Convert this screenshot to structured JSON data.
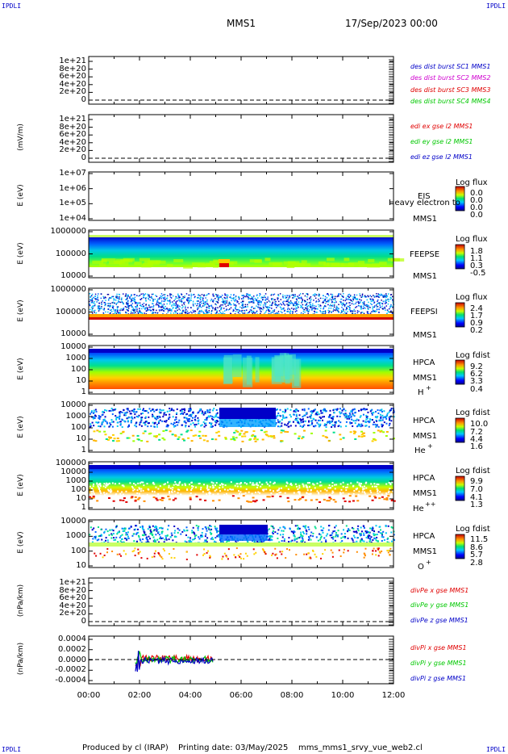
{
  "header": {
    "corner_tl": "IPDLI",
    "corner_tr": "IPDLI",
    "corner_bl": "IPDLI",
    "corner_br": "IPDLI",
    "title": "MMS1",
    "date": "17/Sep/2023 00:00"
  },
  "footer": {
    "produced": "Produced by cl (IRAP)",
    "printing": "Printing date: 03/May/2025",
    "script": "mms_mms1_srvy_vue_web2.cl"
  },
  "x_axis": {
    "labels": [
      "00:00",
      "02:00",
      "04:00",
      "06:00",
      "08:00",
      "10:00",
      "12:00"
    ]
  },
  "colors": {
    "blue": "#0000c8",
    "magenta": "#d000d0",
    "red": "#e00000",
    "green": "#00c800"
  },
  "panels": {
    "p1": {
      "ylabel": "",
      "ticks": [
        "1e+21",
        "8e+20",
        "6e+20",
        "4e+20",
        "2e+20",
        "0"
      ],
      "legend": [
        "des dist burst SC1 MMS1",
        "des dist burst SC2 MMS2",
        "des dist burst SC3 MMS3",
        "des dist burst SC4 MMS4"
      ]
    },
    "p2": {
      "ylabel": "(mV/m)",
      "ticks": [
        "1e+21",
        "8e+20",
        "6e+20",
        "4e+20",
        "2e+20",
        "0"
      ],
      "legend": [
        "edi ex gse l2 MMS1",
        "edi ey gse l2 MMS1",
        "edi ez gse l2 MMS1"
      ]
    },
    "p3": {
      "ylabel": "E (eV)",
      "ticks": [
        "1e+07",
        "1e+06",
        "1e+05",
        "1e+04"
      ],
      "side": [
        "EIS",
        "MMS1"
      ],
      "overlay": "Heavy electron to",
      "cb_title": "Log flux",
      "cb_values": [
        "0.0",
        "0.0",
        "0.0",
        "0.0"
      ]
    },
    "p4": {
      "ylabel": "E (eV)",
      "ticks": [
        "1000000",
        "100000",
        "10000"
      ],
      "side": [
        "FEEPSE",
        "MMS1"
      ],
      "cb_title": "Log flux",
      "cb_values": [
        "1.8",
        "1.1",
        "0.3",
        "-0.5"
      ]
    },
    "p5": {
      "ylabel": "E (eV)",
      "ticks": [
        "1000000",
        "100000",
        "10000"
      ],
      "side": [
        "FEEPSI",
        "MMS1"
      ],
      "cb_title": "Log flux",
      "cb_values": [
        "2.4",
        "1.7",
        "0.9",
        "0.2"
      ]
    },
    "p6": {
      "ylabel": "E (eV)",
      "ticks": [
        "10000",
        "1000",
        "100",
        "10",
        "1"
      ],
      "side": [
        "HPCA",
        "MMS1",
        "H",
        "+"
      ],
      "cb_title": "Log fdist",
      "cb_values": [
        "9.2",
        "6.2",
        "3.3",
        "0.4"
      ]
    },
    "p7": {
      "ylabel": "E (eV)",
      "ticks": [
        "10000",
        "1000",
        "100",
        "10",
        "1"
      ],
      "side": [
        "HPCA",
        "MMS1",
        "He",
        "+"
      ],
      "cb_title": "Log fdist",
      "cb_values": [
        "10.0",
        "7.2",
        "4.4",
        "1.6"
      ]
    },
    "p8": {
      "ylabel": "E (eV)",
      "ticks": [
        "100000",
        "10000",
        "1000",
        "100",
        "10",
        "1"
      ],
      "side": [
        "HPCA",
        "MMS1",
        "He",
        "++"
      ],
      "cb_title": "Log fdist",
      "cb_values": [
        "9.9",
        "7.0",
        "4.1",
        "1.3"
      ]
    },
    "p9": {
      "ylabel": "E (eV)",
      "ticks": [
        "10000",
        "1000",
        "100",
        "10"
      ],
      "side": [
        "HPCA",
        "MMS1",
        "O",
        "+"
      ],
      "cb_title": "Log fdist",
      "cb_values": [
        "11.5",
        "8.6",
        "5.7",
        "2.8"
      ]
    },
    "p10": {
      "ylabel": "(nPa/km)",
      "ticks": [
        "1e+21",
        "8e+20",
        "6e+20",
        "4e+20",
        "2e+20",
        "0"
      ],
      "legend": [
        "divPe x gse MMS1",
        "divPe y gse MMS1",
        "divPe z gse MMS1"
      ]
    },
    "p11": {
      "ylabel": "(nPa/km)",
      "ticks": [
        "0.0004",
        "0.0002",
        "0.0000",
        "-0.0002",
        "-0.0004"
      ],
      "legend": [
        "divPi x gse MMS1",
        "divPi y gse MMS1",
        "divPi z gse MMS1"
      ]
    }
  },
  "chart_data": {
    "type": "heatmap",
    "x_range": [
      "00:00",
      "12:00"
    ],
    "panels": [
      {
        "id": "p1",
        "kind": "line",
        "ylim": [
          0,
          1e+21
        ],
        "series": []
      },
      {
        "id": "p2",
        "kind": "line",
        "ylim": [
          0,
          1e+21
        ],
        "series": []
      },
      {
        "id": "p3",
        "kind": "spectrogram",
        "ylim": [
          10000.0,
          10000000.0
        ],
        "log": true,
        "data": "empty"
      },
      {
        "id": "p4",
        "kind": "spectrogram",
        "ylim": [
          10000.0,
          1000000.0
        ],
        "log": true,
        "clim": [
          -0.5,
          1.8
        ]
      },
      {
        "id": "p5",
        "kind": "spectrogram",
        "ylim": [
          10000.0,
          1000000.0
        ],
        "log": true,
        "clim": [
          0.2,
          2.4
        ]
      },
      {
        "id": "p6",
        "kind": "spectrogram",
        "ylim": [
          1,
          10000.0
        ],
        "log": true,
        "clim": [
          0.4,
          9.2
        ]
      },
      {
        "id": "p7",
        "kind": "spectrogram",
        "ylim": [
          1,
          10000.0
        ],
        "log": true,
        "clim": [
          1.6,
          10.0
        ]
      },
      {
        "id": "p8",
        "kind": "spectrogram",
        "ylim": [
          1,
          100000.0
        ],
        "log": true,
        "clim": [
          1.3,
          9.9
        ]
      },
      {
        "id": "p9",
        "kind": "spectrogram",
        "ylim": [
          1,
          10000.0
        ],
        "log": true,
        "clim": [
          2.8,
          11.5
        ]
      },
      {
        "id": "p10",
        "kind": "line",
        "ylim": [
          0,
          1e+21
        ],
        "series": []
      },
      {
        "id": "p11",
        "kind": "line",
        "ylim": [
          -0.0004,
          0.0004
        ],
        "x_data_range": [
          "01:55",
          "05:00"
        ]
      }
    ]
  }
}
